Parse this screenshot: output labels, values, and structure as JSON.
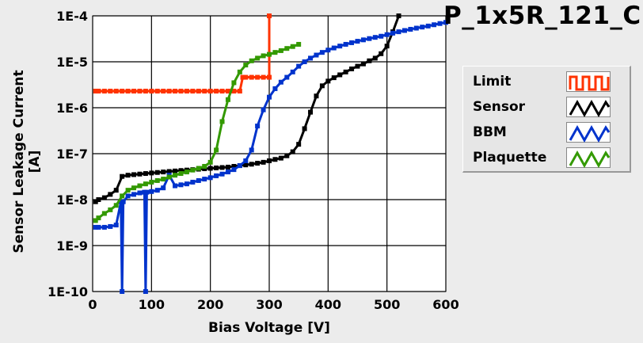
{
  "chart_data": {
    "type": "line",
    "title": "P_1x5R_121_C",
    "xlabel": "Bias Voltage [V]",
    "ylabel": "Sensor Leakage Current [A]",
    "xlim": [
      0,
      600
    ],
    "ylim": [
      1e-10,
      0.0001
    ],
    "yscale": "log",
    "grid": true,
    "legend_position": "right",
    "x_ticks": [
      0,
      100,
      200,
      300,
      400,
      500,
      600
    ],
    "y_ticks": [
      1e-10,
      1e-09,
      1e-08,
      1e-07,
      1e-06,
      1e-05,
      0.0001
    ],
    "y_tick_labels": [
      "1E-10",
      "1E-9",
      "1E-8",
      "1E-7",
      "1E-6",
      "1E-5",
      "1E-4"
    ],
    "series": [
      {
        "name": "Limit",
        "color": "#ff3300",
        "x": [
          5,
          10,
          20,
          30,
          40,
          50,
          60,
          70,
          80,
          90,
          100,
          110,
          120,
          130,
          140,
          150,
          160,
          170,
          180,
          190,
          200,
          210,
          220,
          230,
          240,
          250,
          255,
          260,
          270,
          280,
          290,
          300,
          300
        ],
        "y": [
          2.3e-06,
          2.3e-06,
          2.3e-06,
          2.3e-06,
          2.3e-06,
          2.3e-06,
          2.3e-06,
          2.3e-06,
          2.3e-06,
          2.3e-06,
          2.3e-06,
          2.3e-06,
          2.3e-06,
          2.3e-06,
          2.3e-06,
          2.3e-06,
          2.3e-06,
          2.3e-06,
          2.3e-06,
          2.3e-06,
          2.3e-06,
          2.3e-06,
          2.3e-06,
          2.3e-06,
          2.3e-06,
          2.3e-06,
          4.6e-06,
          4.6e-06,
          4.6e-06,
          4.6e-06,
          4.6e-06,
          4.6e-06,
          0.0001
        ]
      },
      {
        "name": "Sensor",
        "color": "#000000",
        "x": [
          5,
          10,
          20,
          30,
          40,
          50,
          60,
          70,
          80,
          90,
          100,
          110,
          120,
          130,
          140,
          150,
          160,
          170,
          180,
          190,
          200,
          210,
          220,
          230,
          240,
          250,
          260,
          270,
          280,
          290,
          300,
          310,
          320,
          330,
          340,
          350,
          360,
          370,
          380,
          390,
          400,
          410,
          420,
          430,
          440,
          450,
          460,
          470,
          480,
          490,
          500,
          510,
          520
        ],
        "y": [
          9e-09,
          1e-08,
          1.1e-08,
          1.3e-08,
          1.6e-08,
          3.2e-08,
          3.4e-08,
          3.5e-08,
          3.6e-08,
          3.7e-08,
          3.8e-08,
          3.9e-08,
          4e-08,
          4.1e-08,
          4.2e-08,
          4.3e-08,
          4.4e-08,
          4.5e-08,
          4.6e-08,
          4.7e-08,
          4.8e-08,
          4.9e-08,
          5e-08,
          5.1e-08,
          5.3e-08,
          5.5e-08,
          5.7e-08,
          5.9e-08,
          6.2e-08,
          6.5e-08,
          7e-08,
          7.5e-08,
          8e-08,
          9e-08,
          1.1e-07,
          1.6e-07,
          3.5e-07,
          8e-07,
          1.8e-06,
          3e-06,
          3.8e-06,
          4.5e-06,
          5.2e-06,
          6e-06,
          7e-06,
          8e-06,
          9e-06,
          1.05e-05,
          1.2e-05,
          1.5e-05,
          2.2e-05,
          4.5e-05,
          0.0001
        ]
      },
      {
        "name": "BBM",
        "color": "#0033cc",
        "x": [
          5,
          10,
          20,
          30,
          40,
          48,
          50,
          52,
          60,
          70,
          80,
          88,
          90,
          92,
          100,
          110,
          120,
          130,
          140,
          150,
          160,
          170,
          180,
          190,
          200,
          210,
          220,
          230,
          240,
          250,
          260,
          270,
          280,
          290,
          300,
          310,
          320,
          330,
          340,
          350,
          360,
          370,
          380,
          390,
          400,
          410,
          420,
          430,
          440,
          450,
          460,
          470,
          480,
          490,
          500,
          510,
          520,
          530,
          540,
          550,
          560,
          570,
          580,
          590,
          600
        ],
        "y": [
          2.5e-09,
          2.5e-09,
          2.5e-09,
          2.6e-09,
          2.8e-09,
          9e-09,
          1e-10,
          9e-09,
          1.2e-08,
          1.3e-08,
          1.4e-08,
          1.45e-08,
          1e-10,
          1.45e-08,
          1.5e-08,
          1.6e-08,
          1.8e-08,
          3.4e-08,
          2e-08,
          2.1e-08,
          2.2e-08,
          2.4e-08,
          2.6e-08,
          2.8e-08,
          3e-08,
          3.3e-08,
          3.6e-08,
          4e-08,
          4.5e-08,
          5.5e-08,
          7e-08,
          1.2e-07,
          4e-07,
          9e-07,
          1.7e-06,
          2.6e-06,
          3.6e-06,
          4.6e-06,
          6e-06,
          8e-06,
          1e-05,
          1.2e-05,
          1.4e-05,
          1.6e-05,
          1.8e-05,
          2e-05,
          2.2e-05,
          2.4e-05,
          2.6e-05,
          2.8e-05,
          3e-05,
          3.2e-05,
          3.4e-05,
          3.6e-05,
          3.9e-05,
          4.2e-05,
          4.5e-05,
          4.8e-05,
          5.1e-05,
          5.4e-05,
          5.7e-05,
          6e-05,
          6.4e-05,
          6.8e-05,
          7.2e-05
        ]
      },
      {
        "name": "Plaquette",
        "color": "#339900",
        "x": [
          5,
          10,
          20,
          30,
          40,
          50,
          60,
          70,
          80,
          90,
          100,
          110,
          120,
          130,
          140,
          150,
          160,
          170,
          180,
          190,
          200,
          210,
          220,
          230,
          240,
          250,
          260,
          270,
          280,
          290,
          300,
          310,
          320,
          330,
          340,
          350
        ],
        "y": [
          3.5e-09,
          4e-09,
          5e-09,
          6e-09,
          7.5e-09,
          1.2e-08,
          1.6e-08,
          1.8e-08,
          2e-08,
          2.2e-08,
          2.4e-08,
          2.6e-08,
          2.8e-08,
          3.1e-08,
          3.4e-08,
          3.7e-08,
          4e-08,
          4.4e-08,
          4.8e-08,
          5.3e-08,
          6.5e-08,
          1.2e-07,
          5e-07,
          1.5e-06,
          3.5e-06,
          6e-06,
          8.5e-06,
          1.05e-05,
          1.2e-05,
          1.35e-05,
          1.45e-05,
          1.6e-05,
          1.75e-05,
          1.95e-05,
          2.15e-05,
          2.4e-05
        ]
      }
    ]
  }
}
